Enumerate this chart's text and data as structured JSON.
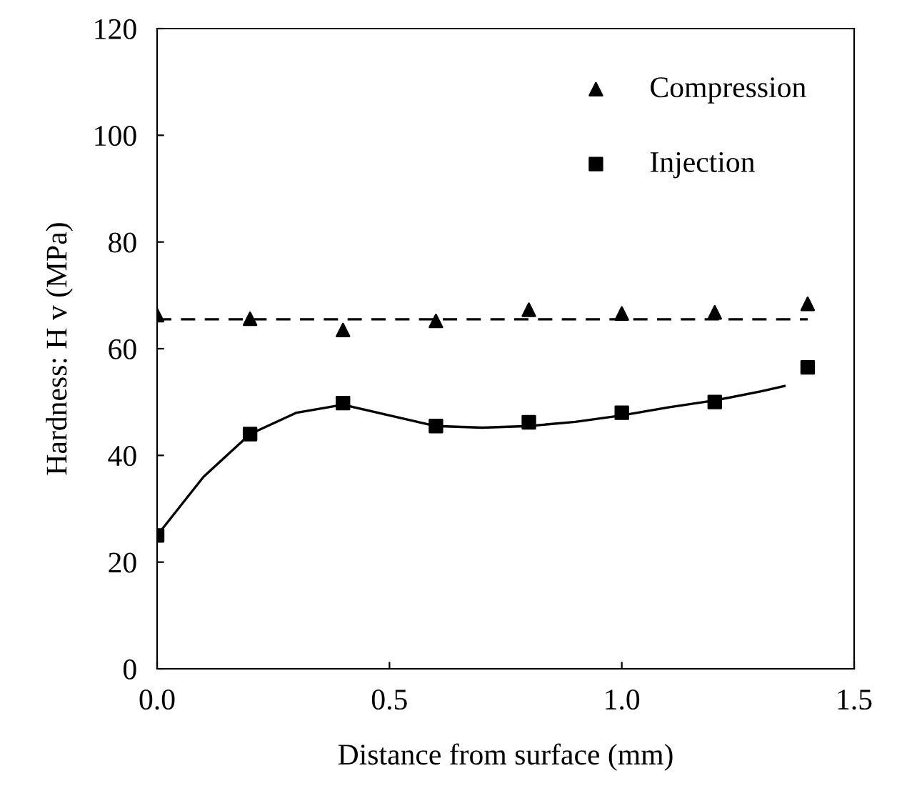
{
  "chart_data": {
    "type": "scatter",
    "xlabel": "Distance from surface (mm)",
    "ylabel": "Hardness: H v (MPa)",
    "xlim": [
      0,
      1.5
    ],
    "ylim": [
      0,
      120
    ],
    "xticks": [
      {
        "value": 0,
        "label": "0.0"
      },
      {
        "value": 0.5,
        "label": "0.5"
      },
      {
        "value": 1,
        "label": "1.0"
      },
      {
        "value": 1.5,
        "label": "1.5"
      }
    ],
    "yticks": [
      0,
      20,
      40,
      60,
      80,
      100,
      120
    ],
    "grid": false,
    "legend": "top right",
    "x": [
      0,
      0.2,
      0.4,
      0.6,
      0.8,
      1.0,
      1.2,
      1.4
    ],
    "series": [
      {
        "name": "Compression",
        "color": "#000000",
        "marker": "triangle",
        "values": [
          66.3,
          65.6,
          63.5,
          65.2,
          67.3,
          66.6,
          66.8,
          68.4
        ]
      },
      {
        "name": "Injection",
        "color": "#000000",
        "marker": "square",
        "values": [
          25,
          44,
          49.8,
          45.5,
          46.2,
          48,
          50,
          56.5
        ]
      },
      {
        "type": "line",
        "color": "#000000",
        "line_style": "dashed",
        "marker": "none",
        "x": [
          0,
          1.4
        ],
        "values": [
          65.5,
          65.5
        ]
      },
      {
        "type": "line",
        "color": "#000000",
        "line_style": "solid",
        "marker": "none",
        "x": [
          0,
          0.1,
          0.2,
          0.3,
          0.4,
          0.5,
          0.6,
          0.7,
          0.8,
          0.9,
          1.0,
          1.1,
          1.2,
          1.3,
          1.35
        ],
        "values": [
          25,
          36,
          44,
          48,
          49.5,
          47.5,
          45.5,
          45.2,
          45.5,
          46.3,
          47.5,
          49,
          50.3,
          52,
          53
        ]
      }
    ]
  }
}
